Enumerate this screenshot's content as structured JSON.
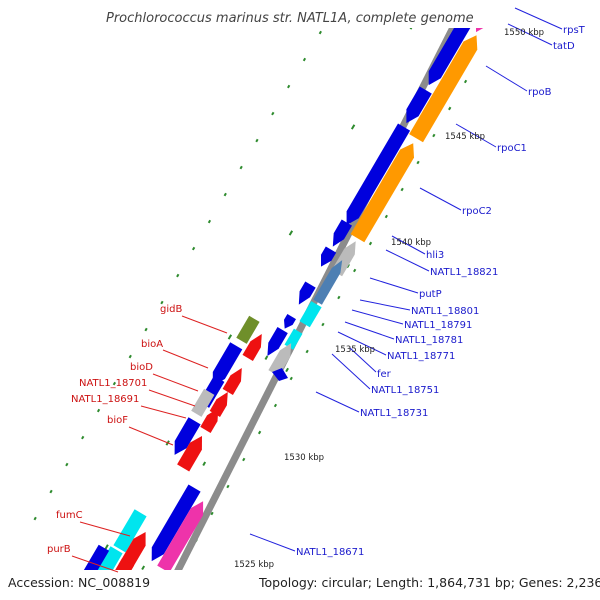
{
  "title": "Prochlorococcus marinus str. NATL1A, complete genome",
  "footer": {
    "accession": "Accession: NC_008819",
    "topology": "Topology: circular; Length: 1,864,731 bp; Genes: 2,236"
  },
  "colors": {
    "backbone": "#8c8c8c",
    "tick": "#2e8b2e",
    "label_blue": "#1a1acc",
    "label_red": "#cc1111",
    "leader_blue": "#2222dd",
    "leader_red": "#dd2222",
    "blue": "#0000dd",
    "red": "#ee1111",
    "orange": "#ff9900",
    "gray": "#bbbbbb",
    "cyan": "#00e5ee",
    "steel": "#4d7fb3",
    "olive": "#6f8f2a",
    "magenta": "#ee33aa"
  },
  "kbp_labels": [
    "1550 kbp",
    "1545 kbp",
    "1540 kbp",
    "1535 kbp",
    "1530 kbp",
    "1525 kbp"
  ],
  "gene_labels_right": [
    "rpsT",
    "tatD",
    "rpoB",
    "rpoC1",
    "rpoC2",
    "hli3",
    "NATL1_18821",
    "putP",
    "NATL1_18801",
    "NATL1_18791",
    "NATL1_18781",
    "NATL1_18771",
    "fer",
    "NATL1_18751",
    "NATL1_18731",
    "NATL1_18671"
  ],
  "gene_labels_left": [
    "gidB",
    "bioA",
    "bioD",
    "NATL1_18701",
    "NATL1_18691",
    "bioF",
    "fumC",
    "purB"
  ]
}
